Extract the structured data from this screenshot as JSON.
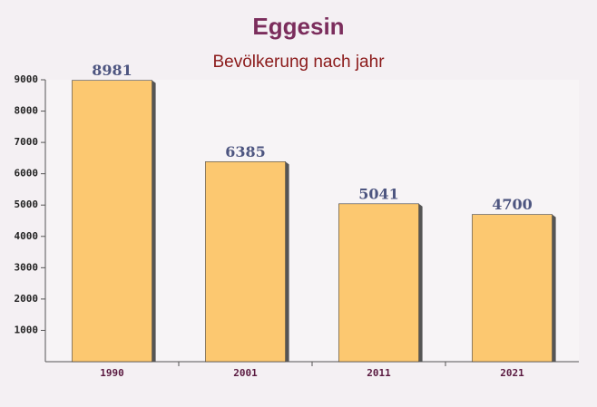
{
  "chart_data": {
    "type": "bar",
    "title": "Eggesin",
    "subtitle": "Bevölkerung nach jahr",
    "categories": [
      "1990",
      "2001",
      "2011",
      "2021"
    ],
    "values": [
      8981,
      6385,
      5041,
      4700
    ],
    "color": "#fdc462",
    "ylim": [
      0,
      9000
    ],
    "yticks": [
      1000,
      2000,
      3000,
      4000,
      5000,
      6000,
      7000,
      8000,
      9000
    ],
    "grid": false
  }
}
